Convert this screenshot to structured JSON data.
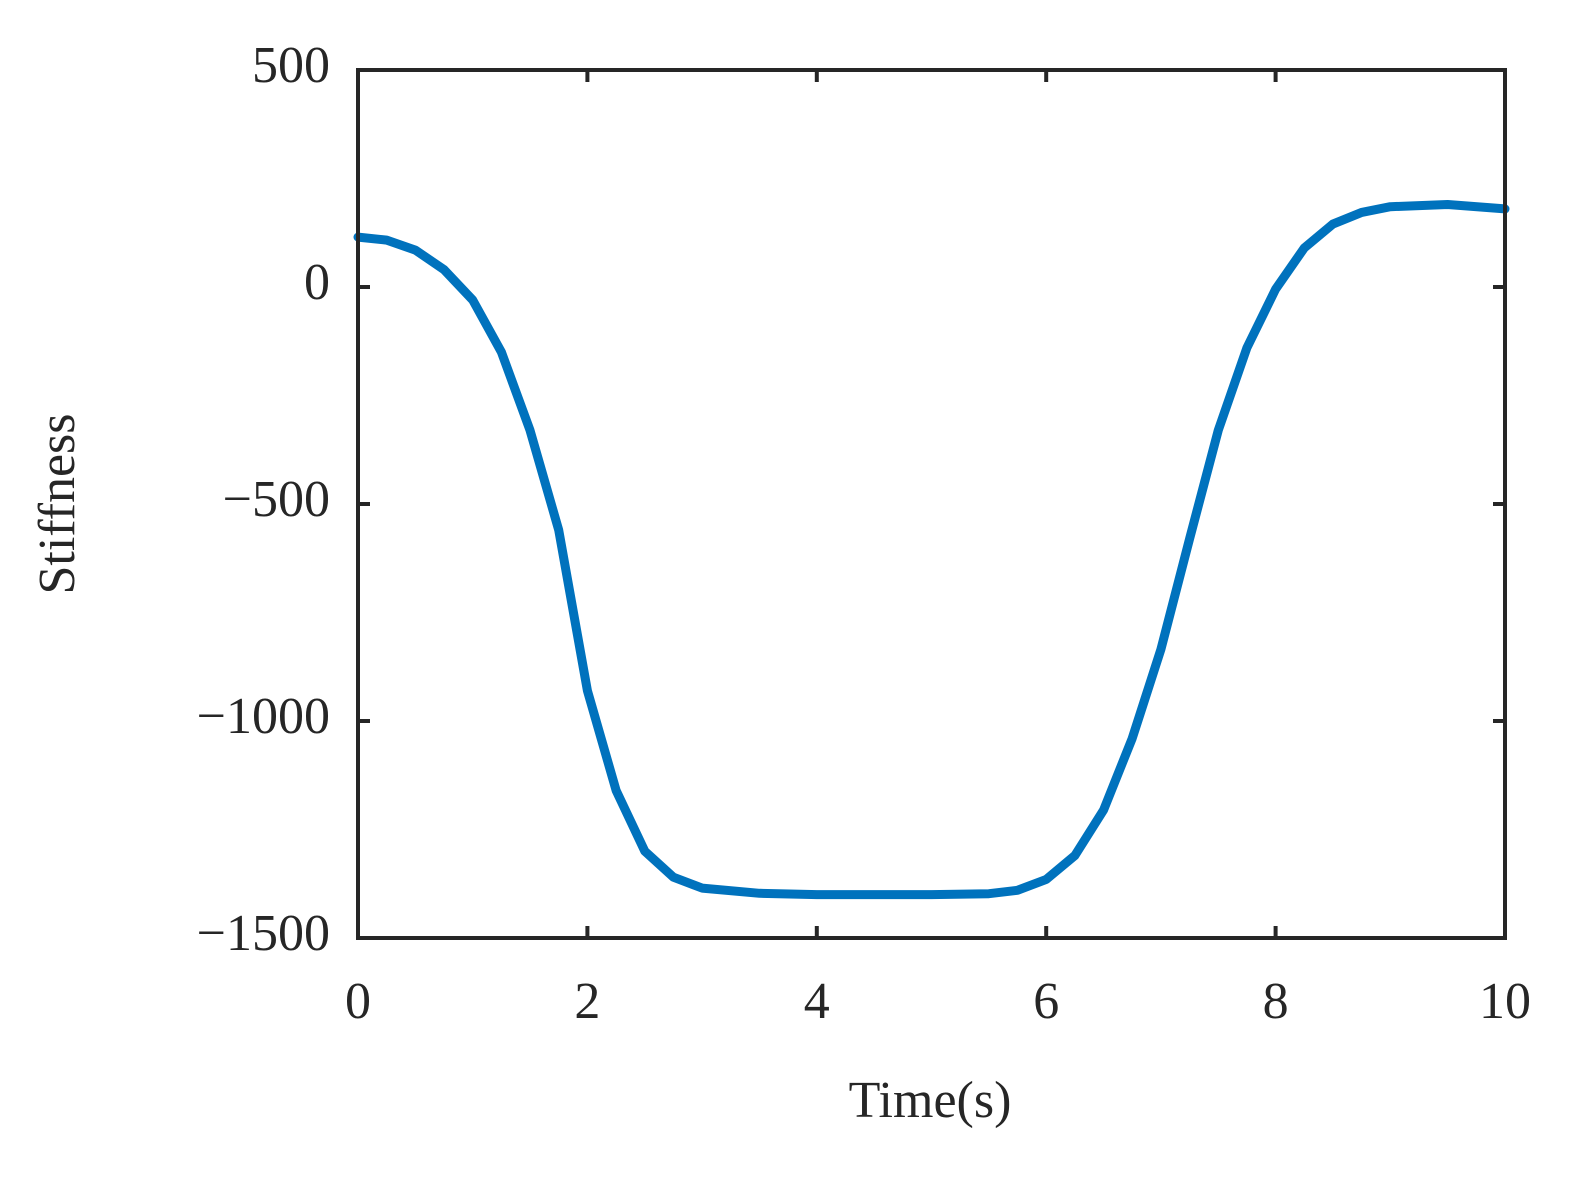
{
  "chart_data": {
    "type": "line",
    "xlabel": "Time(s)",
    "ylabel": "Stiffness",
    "x": [
      0,
      0.25,
      0.5,
      0.75,
      1,
      1.25,
      1.5,
      1.75,
      2,
      2.25,
      2.5,
      2.75,
      3,
      3.5,
      4,
      4.5,
      5,
      5.5,
      5.75,
      6,
      6.25,
      6.5,
      6.75,
      7,
      7.25,
      7.5,
      7.75,
      8,
      8.25,
      8.5,
      8.75,
      9,
      9.5,
      10
    ],
    "values": [
      115,
      108,
      85,
      40,
      -30,
      -150,
      -330,
      -560,
      -930,
      -1160,
      -1300,
      -1360,
      -1385,
      -1397,
      -1400,
      -1400,
      -1400,
      -1398,
      -1390,
      -1365,
      -1310,
      -1205,
      -1040,
      -835,
      -580,
      -330,
      -140,
      -5,
      90,
      145,
      172,
      185,
      190,
      180
    ],
    "color": "#0072bd",
    "xlim": [
      0,
      10
    ],
    "xticks": [
      0,
      2,
      4,
      6,
      8,
      10
    ],
    "ylim": [
      -1500,
      500
    ],
    "yticks": [
      {
        "value": -1500,
        "label": "−1500"
      },
      {
        "value": -1000,
        "label": "−1000"
      },
      {
        "value": -500,
        "label": "−500"
      },
      0,
      500
    ],
    "grid": false
  }
}
